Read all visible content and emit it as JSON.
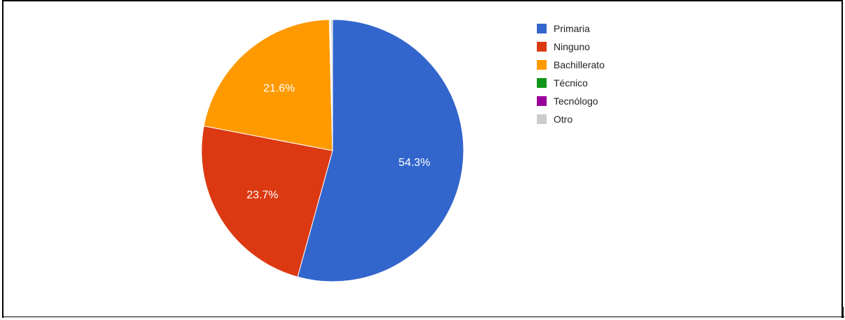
{
  "chart_data": {
    "type": "pie",
    "slices": [
      {
        "label": "Primaria",
        "value": 54.3,
        "display": "54.3%",
        "color": "#3366cc"
      },
      {
        "label": "Ninguno",
        "value": 23.7,
        "display": "23.7%",
        "color": "#dc3912"
      },
      {
        "label": "Bachillerato",
        "value": 21.6,
        "display": "21.6%",
        "color": "#ff9900"
      },
      {
        "label": "Técnico",
        "value": 0.1,
        "display": "",
        "color": "#109618"
      },
      {
        "label": "Tecnólogo",
        "value": 0.1,
        "display": "",
        "color": "#990099"
      },
      {
        "label": "Otro",
        "value": 0.2,
        "display": "",
        "color": "#cccccc"
      }
    ],
    "legend_position": "right",
    "start_angle_deg": 0,
    "direction": "clockwise"
  }
}
